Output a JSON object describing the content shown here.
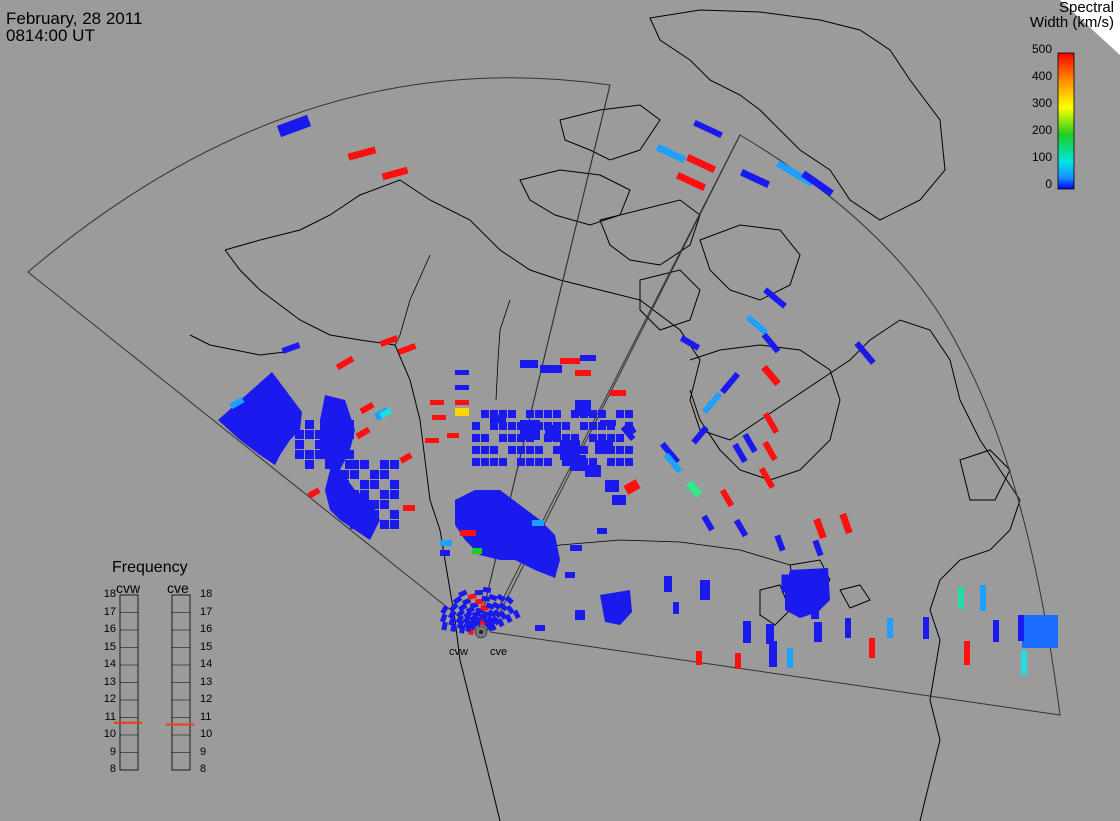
{
  "header": {
    "date": "February, 28 2011",
    "time": "0814:00 UT"
  },
  "colorbar": {
    "title_line1": "Spectral",
    "title_line2": "Width (km/s)",
    "ticks": [
      "500",
      "400",
      "300",
      "200",
      "100",
      "0"
    ],
    "gradient_colors": [
      "#ff0000",
      "#ff8c00",
      "#ffff00",
      "#22cc22",
      "#00e5e5",
      "#1a8cff",
      "#0000ff"
    ]
  },
  "frequency_panel": {
    "title": "Frequency",
    "radars": [
      {
        "name": "cvw",
        "selected_mhz": 10.7
      },
      {
        "name": "cve",
        "selected_mhz": 10.6
      }
    ],
    "scale": [
      "18",
      "17",
      "16",
      "15",
      "14",
      "13",
      "12",
      "11",
      "10",
      "9",
      "8"
    ],
    "indicator_color": "#e84010"
  },
  "sites": {
    "cvw": "cvw",
    "cve": "cve"
  },
  "colors": {
    "background": "#9b9b9b",
    "land": "#9b9b9b",
    "coastline": "#000000",
    "fov": "#333333",
    "blue": "#1a1aee",
    "cyan": "#1ea0ff",
    "red": "#ff1010"
  }
}
